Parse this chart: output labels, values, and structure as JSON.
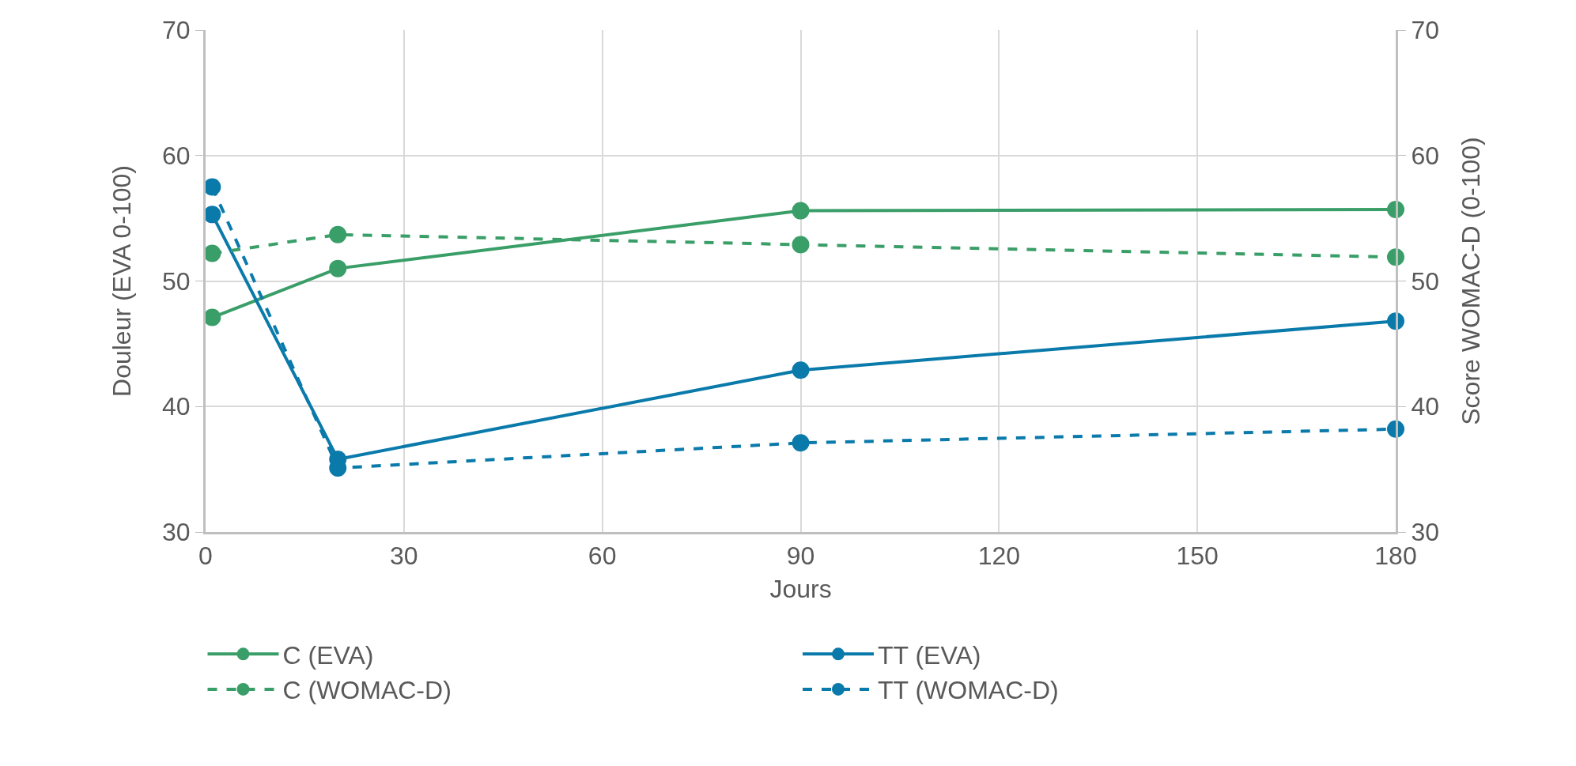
{
  "chart_data": {
    "type": "line",
    "xlabel": "Jours",
    "ylabel": "Douleur (EVA 0-100)",
    "y2label": "Score WOMAC-D (0-100)",
    "x": [
      1,
      20,
      90,
      180
    ],
    "series": [
      {
        "name": "C (EVA)",
        "color": "#3a9e68",
        "values": [
          47.1,
          51.0,
          55.6,
          55.7
        ],
        "line_style": "solid"
      },
      {
        "name": "TT (EVA)",
        "color": "#0a7aab",
        "values": [
          55.3,
          35.8,
          42.9,
          46.8
        ],
        "line_style": "solid"
      },
      {
        "name": "C (WOMAC-D)",
        "color": "#3a9e68",
        "values": [
          52.2,
          53.7,
          52.9,
          51.9
        ],
        "line_style": "dashed",
        "axis": "y2"
      },
      {
        "name": "TT (WOMAC-D)",
        "color": "#0a7aab",
        "values": [
          57.5,
          35.1,
          37.1,
          38.2
        ],
        "line_style": "dashed",
        "axis": "y2"
      }
    ],
    "xlim": [
      0,
      180
    ],
    "xticks": [
      0,
      30,
      60,
      90,
      120,
      150,
      180
    ],
    "ylim": [
      30,
      70
    ],
    "yticks": [
      30,
      40,
      50,
      60,
      70
    ],
    "y2lim": [
      30,
      70
    ],
    "y2ticks": [
      30,
      40,
      50,
      60,
      70
    ],
    "grid": true,
    "legend": "bottom",
    "marker": "circle"
  }
}
